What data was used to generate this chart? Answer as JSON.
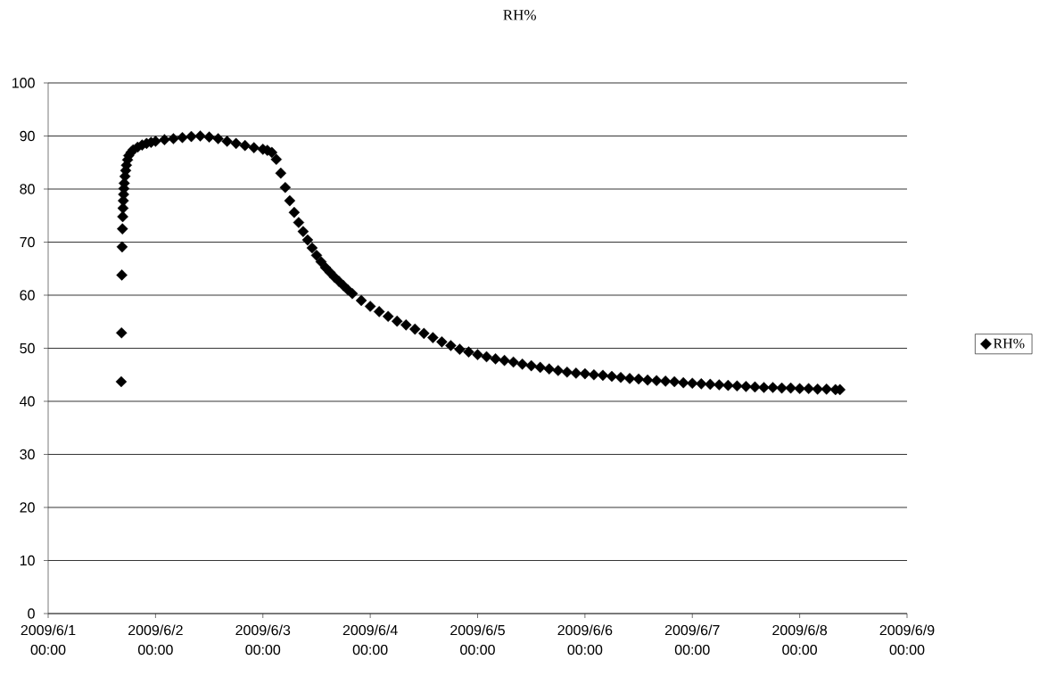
{
  "chart_data": {
    "type": "scatter",
    "title": "RH%",
    "x": [
      "2009-06-01T16:20",
      "2009-06-01T16:24",
      "2009-06-01T16:28",
      "2009-06-01T16:32",
      "2009-06-01T16:36",
      "2009-06-01T16:40",
      "2009-06-01T16:44",
      "2009-06-01T16:48",
      "2009-06-01T16:52",
      "2009-06-01T16:56",
      "2009-06-01T17:00",
      "2009-06-01T17:10",
      "2009-06-01T17:20",
      "2009-06-01T17:30",
      "2009-06-01T17:45",
      "2009-06-01T18:00",
      "2009-06-01T18:30",
      "2009-06-01T19:00",
      "2009-06-01T20:00",
      "2009-06-01T21:00",
      "2009-06-01T22:00",
      "2009-06-01T23:00",
      "2009-06-02T00:00",
      "2009-06-02T02:00",
      "2009-06-02T04:00",
      "2009-06-02T06:00",
      "2009-06-02T08:00",
      "2009-06-02T10:00",
      "2009-06-02T12:00",
      "2009-06-02T14:00",
      "2009-06-02T16:00",
      "2009-06-02T18:00",
      "2009-06-02T20:00",
      "2009-06-02T22:00",
      "2009-06-03T00:00",
      "2009-06-03T01:00",
      "2009-06-03T02:00",
      "2009-06-03T03:00",
      "2009-06-03T04:00",
      "2009-06-03T05:00",
      "2009-06-03T06:00",
      "2009-06-03T07:00",
      "2009-06-03T08:00",
      "2009-06-03T09:00",
      "2009-06-03T10:00",
      "2009-06-03T11:00",
      "2009-06-03T12:00",
      "2009-06-03T13:00",
      "2009-06-03T14:00",
      "2009-06-03T15:00",
      "2009-06-03T16:00",
      "2009-06-03T17:00",
      "2009-06-03T18:00",
      "2009-06-03T19:00",
      "2009-06-03T20:00",
      "2009-06-03T22:00",
      "2009-06-04T00:00",
      "2009-06-04T02:00",
      "2009-06-04T04:00",
      "2009-06-04T06:00",
      "2009-06-04T08:00",
      "2009-06-04T10:00",
      "2009-06-04T12:00",
      "2009-06-04T14:00",
      "2009-06-04T16:00",
      "2009-06-04T18:00",
      "2009-06-04T20:00",
      "2009-06-04T22:00",
      "2009-06-05T00:00",
      "2009-06-05T02:00",
      "2009-06-05T04:00",
      "2009-06-05T06:00",
      "2009-06-05T08:00",
      "2009-06-05T10:00",
      "2009-06-05T12:00",
      "2009-06-05T14:00",
      "2009-06-05T16:00",
      "2009-06-05T18:00",
      "2009-06-05T20:00",
      "2009-06-05T22:00",
      "2009-06-06T00:00",
      "2009-06-06T02:00",
      "2009-06-06T04:00",
      "2009-06-06T06:00",
      "2009-06-06T08:00",
      "2009-06-06T10:00",
      "2009-06-06T12:00",
      "2009-06-06T14:00",
      "2009-06-06T16:00",
      "2009-06-06T18:00",
      "2009-06-06T20:00",
      "2009-06-06T22:00",
      "2009-06-07T00:00",
      "2009-06-07T02:00",
      "2009-06-07T04:00",
      "2009-06-07T06:00",
      "2009-06-07T08:00",
      "2009-06-07T10:00",
      "2009-06-07T12:00",
      "2009-06-07T14:00",
      "2009-06-07T16:00",
      "2009-06-07T18:00",
      "2009-06-07T20:00",
      "2009-06-07T22:00",
      "2009-06-08T00:00",
      "2009-06-08T02:00",
      "2009-06-08T04:00",
      "2009-06-08T06:00",
      "2009-06-08T08:00",
      "2009-06-08T09:00"
    ],
    "series": [
      {
        "name": "RH%",
        "color": "#000000",
        "values": [
          43.7,
          52.9,
          63.8,
          69.1,
          72.5,
          74.8,
          76.4,
          77.8,
          79.0,
          80.1,
          81.1,
          82.4,
          83.5,
          84.5,
          85.5,
          86.3,
          86.9,
          87.4,
          87.9,
          88.3,
          88.6,
          88.8,
          89.0,
          89.3,
          89.5,
          89.7,
          89.9,
          90.0,
          89.8,
          89.5,
          89.0,
          88.6,
          88.2,
          87.8,
          87.5,
          87.3,
          86.9,
          85.6,
          83.0,
          80.3,
          77.8,
          75.6,
          73.7,
          72.0,
          70.4,
          68.9,
          67.5,
          66.3,
          65.2,
          64.3,
          63.4,
          62.6,
          61.8,
          61.0,
          60.3,
          59.0,
          57.9,
          56.9,
          56.0,
          55.1,
          54.4,
          53.6,
          52.8,
          52.0,
          51.2,
          50.5,
          49.8,
          49.3,
          48.8,
          48.4,
          48.0,
          47.7,
          47.4,
          47.0,
          46.7,
          46.4,
          46.1,
          45.8,
          45.5,
          45.3,
          45.2,
          45.0,
          44.9,
          44.7,
          44.5,
          44.3,
          44.2,
          44.0,
          43.9,
          43.8,
          43.7,
          43.5,
          43.4,
          43.3,
          43.2,
          43.1,
          43.0,
          42.9,
          42.8,
          42.7,
          42.6,
          42.6,
          42.5,
          42.5,
          42.4,
          42.4,
          42.3,
          42.3,
          42.2,
          42.2
        ]
      }
    ],
    "xlim": [
      "2009-06-01T00:00",
      "2009-06-09T00:00"
    ],
    "xticks": [
      {
        "value": "2009-06-01T00:00",
        "label": "2009/6/1 00:00"
      },
      {
        "value": "2009-06-02T00:00",
        "label": "2009/6/2 00:00"
      },
      {
        "value": "2009-06-03T00:00",
        "label": "2009/6/3 00:00"
      },
      {
        "value": "2009-06-04T00:00",
        "label": "2009/6/4 00:00"
      },
      {
        "value": "2009-06-05T00:00",
        "label": "2009/6/5 00:00"
      },
      {
        "value": "2009-06-06T00:00",
        "label": "2009/6/6 00:00"
      },
      {
        "value": "2009-06-07T00:00",
        "label": "2009/6/7 00:00"
      },
      {
        "value": "2009-06-08T00:00",
        "label": "2009/6/8 00:00"
      },
      {
        "value": "2009-06-09T00:00",
        "label": "2009/6/9 00:00"
      }
    ],
    "ylim": [
      0,
      100
    ],
    "yticks": [
      0,
      10,
      20,
      30,
      40,
      50,
      60,
      70,
      80,
      90,
      100
    ],
    "grid": "y",
    "legend": "right",
    "marker": "diamond"
  }
}
